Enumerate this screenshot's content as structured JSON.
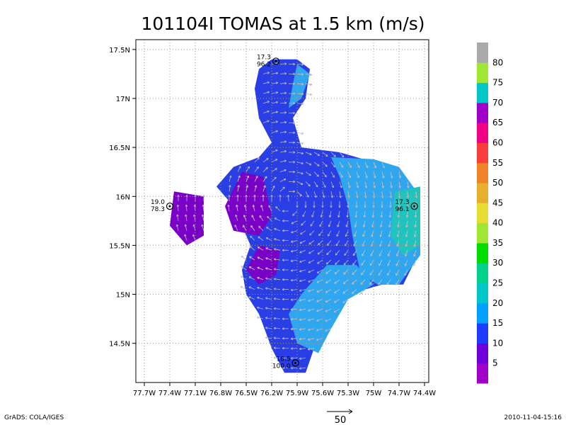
{
  "chart_data": {
    "type": "heatmap",
    "title": "101104I TOMAS at 1.5 km (m/s)",
    "xlabel": "",
    "ylabel": "",
    "x_ticks": [
      "77.7W",
      "77.4W",
      "77.1W",
      "76.8W",
      "76.5W",
      "76.2W",
      "75.9W",
      "75.6W",
      "75.3W",
      "75W",
      "74.7W",
      "74.4W"
    ],
    "x_tick_values": [
      -77.7,
      -77.4,
      -77.1,
      -76.8,
      -76.5,
      -76.2,
      -75.9,
      -75.6,
      -75.3,
      -75.0,
      -74.7,
      -74.4
    ],
    "y_ticks": [
      "14.5N",
      "15N",
      "15.5N",
      "16N",
      "16.5N",
      "17N",
      "17.5N"
    ],
    "y_tick_values": [
      14.5,
      15.0,
      15.5,
      16.0,
      16.5,
      17.0,
      17.5
    ],
    "xlim": [
      -77.8,
      -74.35
    ],
    "ylim": [
      14.1,
      17.6
    ],
    "grid": true,
    "colorbar": {
      "placement": "right",
      "labels": [
        "5",
        "10",
        "15",
        "20",
        "25",
        "30",
        "35",
        "40",
        "45",
        "50",
        "55",
        "60",
        "65",
        "70",
        "75",
        "80"
      ],
      "colors": [
        "#a000c8",
        "#6e00dc",
        "#1e3cff",
        "#00a0ff",
        "#00c8c8",
        "#00d28c",
        "#00dc00",
        "#a0e632",
        "#e6dc32",
        "#e6af2d",
        "#f08228",
        "#fa3c3c",
        "#f00082",
        "#a000c8",
        "#00c8c8",
        "#a0e632",
        "#aaaaaa"
      ]
    },
    "wind_regions": [
      {
        "speed_class": "10-15",
        "polygon": [
          [
            -76.2,
            17.4
          ],
          [
            -75.9,
            17.4
          ],
          [
            -75.75,
            17.3
          ],
          [
            -75.8,
            17.0
          ],
          [
            -75.95,
            16.8
          ],
          [
            -75.85,
            16.5
          ],
          [
            -75.4,
            16.45
          ],
          [
            -75.0,
            16.35
          ],
          [
            -74.7,
            16.25
          ],
          [
            -74.45,
            16.0
          ],
          [
            -74.45,
            15.45
          ],
          [
            -74.65,
            15.1
          ],
          [
            -74.9,
            15.1
          ],
          [
            -75.1,
            15.05
          ],
          [
            -75.4,
            14.95
          ],
          [
            -75.6,
            14.8
          ],
          [
            -75.7,
            14.45
          ],
          [
            -75.8,
            14.2
          ],
          [
            -76.05,
            14.2
          ],
          [
            -76.2,
            14.45
          ],
          [
            -76.35,
            14.8
          ],
          [
            -76.5,
            15.0
          ],
          [
            -76.55,
            15.25
          ],
          [
            -76.45,
            15.5
          ],
          [
            -76.65,
            15.9
          ],
          [
            -76.85,
            16.1
          ],
          [
            -76.65,
            16.3
          ],
          [
            -76.35,
            16.4
          ],
          [
            -76.2,
            16.55
          ],
          [
            -76.35,
            16.8
          ],
          [
            -76.4,
            17.1
          ],
          [
            -76.35,
            17.3
          ]
        ]
      },
      {
        "speed_class": "15-20",
        "polygon": [
          [
            -75.9,
            17.35
          ],
          [
            -75.75,
            17.25
          ],
          [
            -75.85,
            17.0
          ],
          [
            -76.0,
            16.9
          ],
          [
            -75.95,
            17.15
          ]
        ]
      },
      {
        "speed_class": "15-20",
        "polygon": [
          [
            -75.5,
            16.4
          ],
          [
            -75.0,
            16.38
          ],
          [
            -74.7,
            16.3
          ],
          [
            -74.45,
            16.0
          ],
          [
            -74.45,
            15.4
          ],
          [
            -74.7,
            15.1
          ],
          [
            -74.95,
            15.1
          ],
          [
            -75.15,
            15.2
          ],
          [
            -75.25,
            15.6
          ],
          [
            -75.3,
            15.9
          ],
          [
            -75.4,
            16.2
          ]
        ]
      },
      {
        "speed_class": "15-20",
        "polygon": [
          [
            -75.55,
            15.3
          ],
          [
            -75.2,
            15.3
          ],
          [
            -75.0,
            15.1
          ],
          [
            -75.3,
            14.95
          ],
          [
            -75.5,
            14.65
          ],
          [
            -75.65,
            14.4
          ],
          [
            -75.9,
            14.5
          ],
          [
            -76.0,
            14.8
          ],
          [
            -75.85,
            15.0
          ]
        ]
      },
      {
        "speed_class": "20-25",
        "polygon": [
          [
            -74.75,
            16.05
          ],
          [
            -74.45,
            16.1
          ],
          [
            -74.45,
            15.5
          ],
          [
            -74.65,
            15.4
          ],
          [
            -74.8,
            15.6
          ]
        ]
      },
      {
        "speed_class": "5-10",
        "polygon": [
          [
            -76.55,
            16.25
          ],
          [
            -76.3,
            16.2
          ],
          [
            -76.2,
            15.8
          ],
          [
            -76.35,
            15.6
          ],
          [
            -76.65,
            15.65
          ],
          [
            -76.75,
            15.9
          ]
        ]
      },
      {
        "speed_class": "5-10",
        "polygon": [
          [
            -76.35,
            15.5
          ],
          [
            -76.1,
            15.45
          ],
          [
            -76.15,
            15.2
          ],
          [
            -76.35,
            15.1
          ],
          [
            -76.5,
            15.25
          ]
        ]
      },
      {
        "speed_class": "5-10",
        "polygon": [
          [
            -77.35,
            16.05
          ],
          [
            -77.0,
            16.0
          ],
          [
            -77.0,
            15.6
          ],
          [
            -77.2,
            15.5
          ],
          [
            -77.4,
            15.7
          ]
        ]
      }
    ],
    "storm_markers": [
      {
        "label_top": "17.3",
        "label_bottom": "96.2",
        "lon": -76.15,
        "lat": 17.38
      },
      {
        "label_top": "19.0",
        "label_bottom": "78.3",
        "lon": -77.4,
        "lat": 15.9
      },
      {
        "label_top": "17.3",
        "label_bottom": "96.1",
        "lon": -74.52,
        "lat": 15.9
      },
      {
        "label_top": "18.5",
        "label_bottom": "100.0",
        "lon": -75.92,
        "lat": 14.3
      }
    ],
    "vector_scale_label": "50"
  },
  "footer": {
    "left": "GrADS: COLA/IGES",
    "right": "2010-11-04-15:16"
  }
}
